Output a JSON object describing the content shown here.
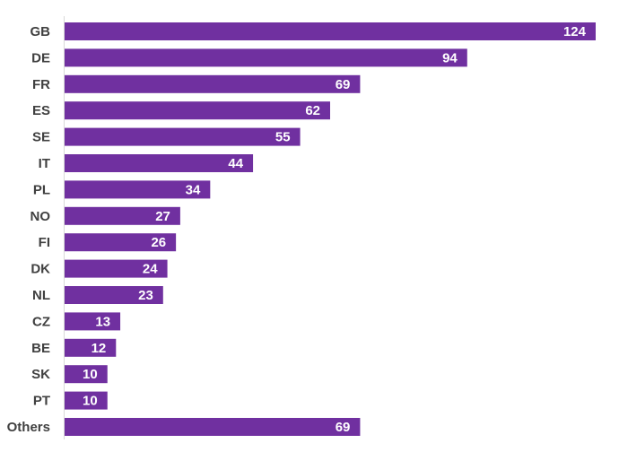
{
  "chart_data": {
    "type": "bar",
    "orientation": "horizontal",
    "categories": [
      "GB",
      "DE",
      "FR",
      "ES",
      "SE",
      "IT",
      "PL",
      "NO",
      "FI",
      "DK",
      "NL",
      "CZ",
      "BE",
      "SK",
      "PT",
      "Others"
    ],
    "values": [
      124,
      94,
      69,
      62,
      55,
      44,
      34,
      27,
      26,
      24,
      23,
      13,
      12,
      10,
      10,
      69
    ],
    "title": "",
    "xlabel": "",
    "ylabel": "",
    "xlim": [
      0,
      124
    ],
    "grid": false,
    "legend": "none",
    "data_labels": "inside-end",
    "bar_color": "#7030a0",
    "label_color": "#404040",
    "data_label_color": "#ffffff"
  }
}
